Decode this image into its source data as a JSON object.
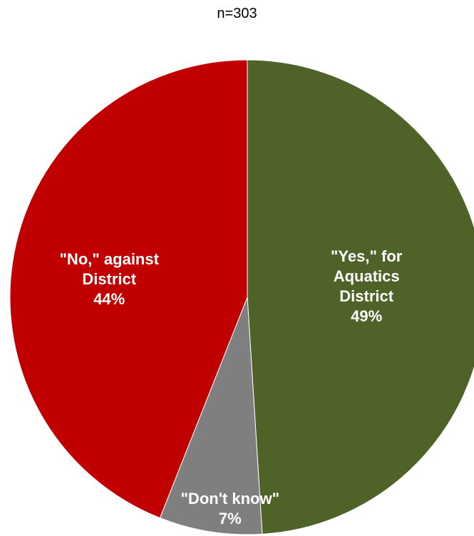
{
  "chart_data": {
    "type": "pie",
    "title": "n=303",
    "slices": [
      {
        "label": "\"Yes,\" for\nAquatics\nDistrict",
        "value": 49,
        "value_label": "49%",
        "color": "#4f6228"
      },
      {
        "label": "\"Don't know\"",
        "value": 7,
        "value_label": "7%",
        "color": "#7f7f7f"
      },
      {
        "label": "\"No,\" against\nDistrict",
        "value": 44,
        "value_label": "44%",
        "color": "#c00000"
      }
    ],
    "start_angle": "12 o'clock",
    "direction": "clockwise"
  }
}
